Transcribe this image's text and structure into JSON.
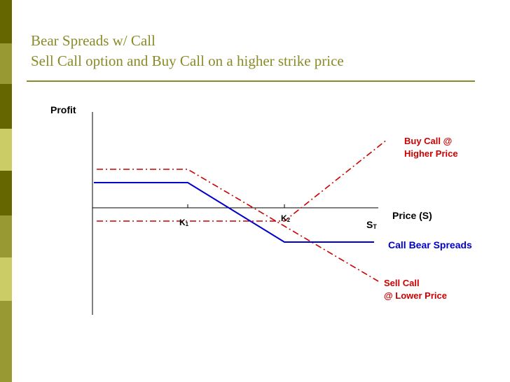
{
  "title": {
    "line1": "Bear Spreads w/ Call",
    "line2": "Sell Call option and Buy Call on a higher strike price"
  },
  "colors": {
    "title": "#8a8a28",
    "sell_call": "#cc0000",
    "buy_call": "#cc0000",
    "spread": "#0000cc",
    "axis": "#000000",
    "sidebar": [
      "#666600",
      "#999933",
      "#cccc66"
    ]
  },
  "diagram": {
    "y_axis_label": "Profit",
    "x_axis_label": "Price (S)",
    "st_label": "S",
    "st_subscript": "T",
    "k1_label": "K",
    "k1_subscript": "1",
    "k2_label": "K",
    "k2_subscript": "2",
    "buy_call_label": [
      "Buy Call @",
      "Higher Price"
    ],
    "sell_call_label": [
      "Sell Call",
      "@ Lower Price"
    ],
    "spread_label": "Call Bear Spreads"
  }
}
